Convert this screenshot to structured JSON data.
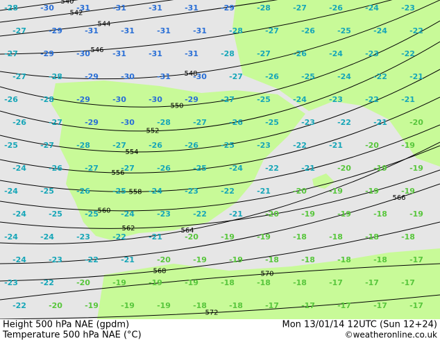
{
  "map": {
    "footer": {
      "title_left": "Height 500 hPa NAE (gpdm)",
      "title_right": "Mon 13/01/14 12UTC (Sun 12+24)",
      "subtitle_left": "Temperature 500 hPa NAE (°C)",
      "credit": "©weatheronline.co.uk"
    },
    "contours": [
      540,
      542,
      544,
      546,
      548,
      550,
      552,
      554,
      556,
      558,
      560,
      562,
      564,
      566,
      568,
      570,
      572
    ],
    "temperatures": [
      [
        -28,
        -30,
        -31,
        -31,
        -31,
        -31,
        -29,
        -28,
        -27,
        -26,
        -24,
        -23
      ],
      [
        -27,
        -29,
        -31,
        -31,
        -31,
        -31,
        -28,
        -27,
        -26,
        -25,
        -24,
        -22
      ],
      [
        -27,
        -29,
        -30,
        -31,
        -31,
        -31,
        -28,
        -27,
        -26,
        -24,
        -23,
        -22
      ],
      [
        -27,
        -28,
        -29,
        -30,
        -31,
        -30,
        -27,
        -26,
        -25,
        -24,
        -22,
        -21
      ],
      [
        -26,
        -28,
        -29,
        -30,
        -30,
        -29,
        -27,
        -25,
        -24,
        -23,
        -22,
        -21
      ],
      [
        -26,
        -27,
        -29,
        -30,
        -28,
        -27,
        -26,
        -25,
        -23,
        -22,
        -21,
        -20
      ],
      [
        -25,
        -27,
        -28,
        -27,
        -26,
        -26,
        -25,
        -23,
        -22,
        -21,
        -20,
        -19
      ],
      [
        -24,
        -26,
        -27,
        -27,
        -26,
        -25,
        -24,
        -22,
        -21,
        -20,
        -19,
        -19
      ],
      [
        -24,
        -25,
        -26,
        -25,
        -24,
        -23,
        -22,
        -21,
        -20,
        -19,
        -19,
        -19
      ],
      [
        -24,
        -25,
        -25,
        -24,
        -23,
        -22,
        -21,
        -20,
        -19,
        -19,
        -18,
        -19
      ],
      [
        -24,
        -24,
        -23,
        -22,
        -21,
        -20,
        -19,
        -19,
        -18,
        -18,
        -18,
        -18
      ],
      [
        -24,
        -23,
        -22,
        -21,
        -20,
        -19,
        -19,
        -18,
        -18,
        -18,
        -18,
        -17
      ],
      [
        -23,
        -22,
        -20,
        -19,
        -19,
        -19,
        -18,
        -18,
        -18,
        -17,
        -17,
        -17
      ],
      [
        -22,
        -20,
        -19,
        -19,
        -19,
        -18,
        -18,
        -17,
        -17,
        -17,
        -17,
        -17
      ]
    ]
  }
}
